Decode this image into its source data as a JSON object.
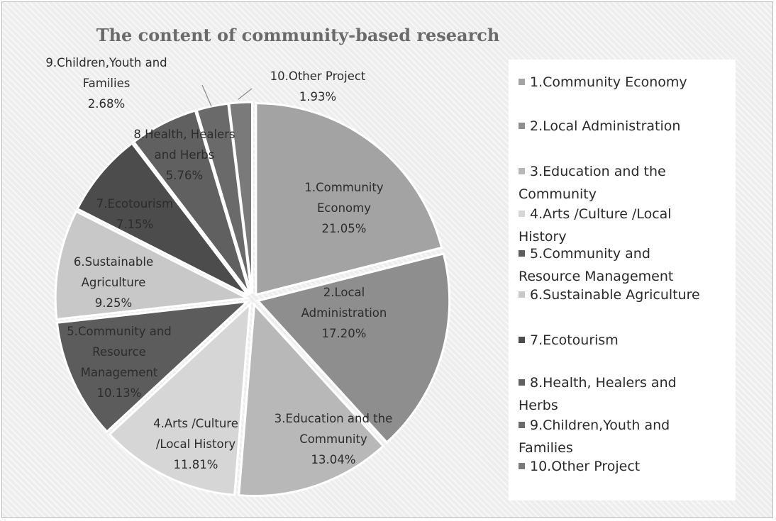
{
  "chart_data": {
    "type": "pie",
    "title": "The content of community-based research",
    "slices": [
      {
        "name": "1.Community Economy",
        "value": 21.05,
        "label_lines": [
          "1.Community",
          "Economy",
          "21.05%"
        ],
        "color": "#a3a3a3"
      },
      {
        "name": "2.Local Administration",
        "value": 17.2,
        "label_lines": [
          "2.Local",
          "Administration",
          "17.20%"
        ],
        "color": "#8e8e8e"
      },
      {
        "name": "3.Education and the Community",
        "value": 13.04,
        "label_lines": [
          "3.Education and the",
          "Community",
          "13.04%"
        ],
        "color": "#b8b8b8"
      },
      {
        "name": "4.Arts /Culture /Local History",
        "value": 11.81,
        "label_lines": [
          "4.Arts /Culture",
          "/Local History",
          "11.81%"
        ],
        "color": "#d6d6d6"
      },
      {
        "name": "5.Community and Resource Management",
        "value": 10.13,
        "label_lines": [
          "5.Community and",
          "Resource",
          "Management",
          "10.13%"
        ],
        "color": "#5c5c5c"
      },
      {
        "name": "6.Sustainable Agriculture",
        "value": 9.25,
        "label_lines": [
          "6.Sustainable",
          "Agriculture",
          "9.25%"
        ],
        "color": "#c8c8c8"
      },
      {
        "name": "7.Ecotourism",
        "value": 7.15,
        "label_lines": [
          "7.Ecotourism",
          "7.15%"
        ],
        "color": "#4c4c4c"
      },
      {
        "name": "8.Health, Healers and Herbs",
        "value": 5.76,
        "label_lines": [
          "8.Health, Healers",
          "and Herbs",
          "5.76%"
        ],
        "color": "#606060"
      },
      {
        "name": "9.Children,Youth and Families",
        "value": 2.68,
        "label_lines": [
          "9.Children,Youth and",
          "Families",
          "2.68%"
        ],
        "color": "#6a6a6a"
      },
      {
        "name": "10.Other Project",
        "value": 1.93,
        "label_lines": [
          "10.Other Project",
          "1.93%"
        ],
        "color": "#7a7a7a"
      }
    ],
    "legend": {
      "placement": "right",
      "entries": [
        [
          "1.Community Economy"
        ],
        [
          "2.Local Administration"
        ],
        [
          "3.Education and the",
          "Community"
        ],
        [
          "4.Arts /Culture /Local",
          "History"
        ],
        [
          "5.Community and",
          "Resource Management"
        ],
        [
          "6.Sustainable Agriculture"
        ],
        [
          "7.Ecotourism"
        ],
        [
          "8.Health, Healers and",
          "Herbs"
        ],
        [
          "9.Children,Youth and",
          "Families"
        ],
        [
          "10.Other Project"
        ]
      ]
    }
  }
}
